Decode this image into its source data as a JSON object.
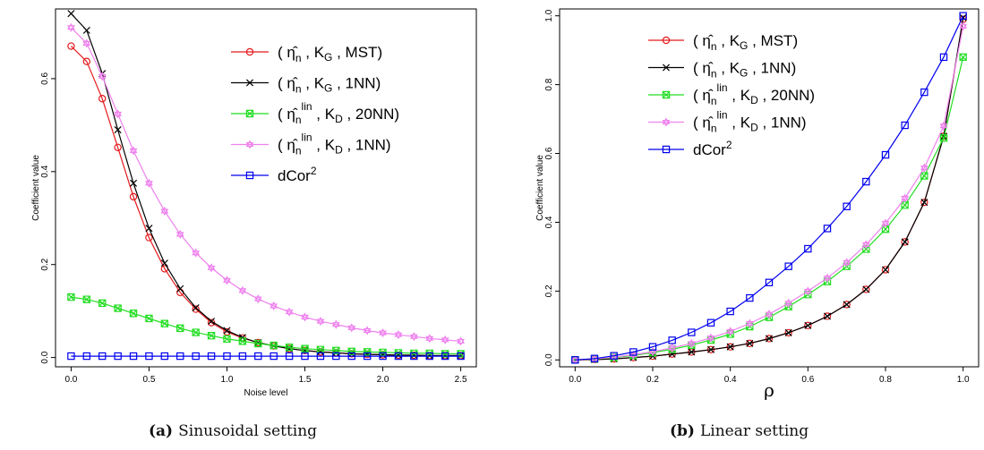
{
  "chart_data": [
    {
      "type": "line",
      "panel_label": "(a)",
      "caption": "Sinusoidal setting",
      "xlabel": "Noise level",
      "ylabel": "Coefficient value",
      "xlim": [
        0,
        2.5
      ],
      "ylim": [
        0,
        0.75
      ],
      "xticks": [
        "0.0",
        "0.5",
        "1.0",
        "1.5",
        "2.0",
        "2.5"
      ],
      "yticks": [
        "0.0",
        "0.2",
        "0.4",
        "0.6"
      ],
      "x": [
        0,
        0.1,
        0.2,
        0.3,
        0.4,
        0.5,
        0.6,
        0.7,
        0.8,
        0.9,
        1.0,
        1.1,
        1.2,
        1.3,
        1.4,
        1.5,
        1.6,
        1.7,
        1.8,
        1.9,
        2.0,
        2.1,
        2.2,
        2.3,
        2.4,
        2.5
      ],
      "legend_position": "top-right",
      "series": [
        {
          "name": "( η̂n , KG , MST)",
          "color": "#e41a1c",
          "marker": "circle",
          "values": [
            0.67,
            0.637,
            0.557,
            0.452,
            0.346,
            0.258,
            0.191,
            0.14,
            0.104,
            0.075,
            0.055,
            0.042,
            0.032,
            0.025,
            0.019,
            0.015,
            0.012,
            0.01,
            0.008,
            0.007,
            0.006,
            0.005,
            0.005,
            0.004,
            0.004,
            0.004
          ]
        },
        {
          "name": "( η̂n , KG , 1NN)",
          "color": "#000000",
          "marker": "cross",
          "values": [
            0.74,
            0.704,
            0.611,
            0.49,
            0.375,
            0.278,
            0.203,
            0.148,
            0.107,
            0.078,
            0.058,
            0.043,
            0.032,
            0.025,
            0.019,
            0.015,
            0.012,
            0.01,
            0.008,
            0.007,
            0.006,
            0.005,
            0.005,
            0.004,
            0.004,
            0.004
          ]
        },
        {
          "name": "( η̂nlin , KD , 20NN)",
          "color": "#22dd22",
          "marker": "boxed-cross",
          "values": [
            0.13,
            0.125,
            0.117,
            0.106,
            0.095,
            0.084,
            0.073,
            0.063,
            0.054,
            0.047,
            0.04,
            0.035,
            0.03,
            0.026,
            0.022,
            0.019,
            0.017,
            0.015,
            0.013,
            0.012,
            0.011,
            0.01,
            0.009,
            0.009,
            0.008,
            0.008
          ]
        },
        {
          "name": "( η̂nlin , KD , 1NN)",
          "color": "#ee82ee",
          "marker": "star",
          "values": [
            0.71,
            0.676,
            0.605,
            0.524,
            0.445,
            0.375,
            0.315,
            0.265,
            0.225,
            0.193,
            0.166,
            0.144,
            0.126,
            0.111,
            0.098,
            0.087,
            0.078,
            0.071,
            0.064,
            0.058,
            0.053,
            0.049,
            0.045,
            0.041,
            0.038,
            0.035
          ]
        },
        {
          "name": "dCor2",
          "color": "#0000ee",
          "marker": "square",
          "values": [
            0.003,
            0.003,
            0.003,
            0.003,
            0.003,
            0.003,
            0.003,
            0.003,
            0.003,
            0.003,
            0.003,
            0.003,
            0.003,
            0.003,
            0.003,
            0.003,
            0.003,
            0.003,
            0.003,
            0.003,
            0.003,
            0.003,
            0.003,
            0.003,
            0.003,
            0.003
          ]
        }
      ]
    },
    {
      "type": "line",
      "panel_label": "(b)",
      "caption": "Linear setting",
      "xlabel": "ρ",
      "ylabel": "Coefficient value",
      "xlim": [
        0,
        1
      ],
      "ylim": [
        0,
        1
      ],
      "xticks": [
        "0.0",
        "0.2",
        "0.4",
        "0.6",
        "0.8",
        "1.0"
      ],
      "yticks": [
        "0.0",
        "0.2",
        "0.4",
        "0.6",
        "0.8",
        "1.0"
      ],
      "x": [
        0,
        0.05,
        0.1,
        0.15,
        0.2,
        0.25,
        0.3,
        0.35,
        0.4,
        0.45,
        0.5,
        0.55,
        0.6,
        0.65,
        0.7,
        0.75,
        0.8,
        0.85,
        0.9,
        0.95,
        1.0
      ],
      "legend_position": "top-left",
      "series": [
        {
          "name": "( η̂n , KG , MST)",
          "color": "#e41a1c",
          "marker": "circle",
          "values": [
            0.0,
            0.001,
            0.003,
            0.007,
            0.011,
            0.017,
            0.023,
            0.03,
            0.038,
            0.048,
            0.062,
            0.079,
            0.1,
            0.127,
            0.161,
            0.205,
            0.262,
            0.343,
            0.458,
            0.65,
            0.99
          ]
        },
        {
          "name": "( η̂n , KG , 1NN)",
          "color": "#000000",
          "marker": "cross",
          "values": [
            0.0,
            0.001,
            0.003,
            0.007,
            0.011,
            0.017,
            0.023,
            0.03,
            0.038,
            0.048,
            0.062,
            0.079,
            0.1,
            0.127,
            0.161,
            0.205,
            0.262,
            0.343,
            0.458,
            0.65,
            0.995
          ]
        },
        {
          "name": "( η̂nlin , KD , 20NN)",
          "color": "#22dd22",
          "marker": "boxed-cross",
          "values": [
            0.0,
            0.003,
            0.007,
            0.013,
            0.021,
            0.031,
            0.043,
            0.058,
            0.075,
            0.097,
            0.124,
            0.155,
            0.19,
            0.228,
            0.272,
            0.322,
            0.38,
            0.45,
            0.535,
            0.645,
            0.88
          ]
        },
        {
          "name": "( η̂nlin , KD , 1NN)",
          "color": "#ee82ee",
          "marker": "star",
          "values": [
            0.0,
            0.003,
            0.008,
            0.015,
            0.024,
            0.035,
            0.048,
            0.064,
            0.083,
            0.106,
            0.133,
            0.165,
            0.2,
            0.238,
            0.283,
            0.335,
            0.397,
            0.47,
            0.558,
            0.68,
            0.97
          ]
        },
        {
          "name": "dCor2",
          "color": "#0000ee",
          "marker": "square",
          "values": [
            0.0,
            0.004,
            0.012,
            0.023,
            0.038,
            0.057,
            0.08,
            0.108,
            0.141,
            0.18,
            0.225,
            0.272,
            0.323,
            0.382,
            0.446,
            0.518,
            0.596,
            0.682,
            0.778,
            0.88,
            1.0
          ]
        }
      ]
    }
  ]
}
